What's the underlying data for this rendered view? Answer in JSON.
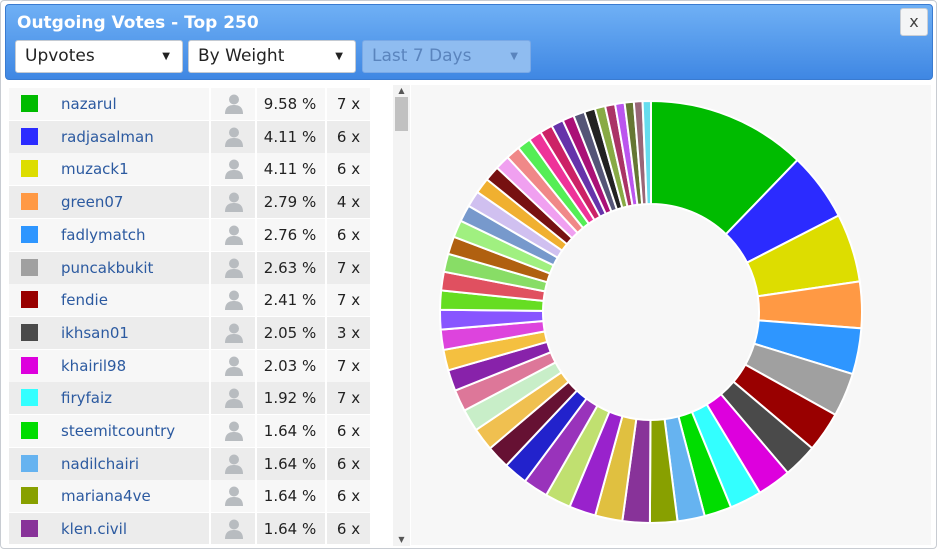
{
  "window": {
    "title": "Outgoing Votes - Top 250",
    "close_label": "x"
  },
  "filters": {
    "vote_type": "Upvotes",
    "sort": "By Weight",
    "period": "Last 7 Days"
  },
  "icons": {
    "dropdown": "chevron-down-icon",
    "user": "user-icon"
  },
  "votes": [
    {
      "name": "nazarul",
      "percent": "9.58 %",
      "count": "7 x",
      "color": "#00bb00"
    },
    {
      "name": "radjasalman",
      "percent": "4.11 %",
      "count": "6 x",
      "color": "#2b2bff"
    },
    {
      "name": "muzack1",
      "percent": "4.11 %",
      "count": "6 x",
      "color": "#dddd00"
    },
    {
      "name": "green07",
      "percent": "2.79 %",
      "count": "4 x",
      "color": "#ff9944"
    },
    {
      "name": "fadlymatch",
      "percent": "2.76 %",
      "count": "6 x",
      "color": "#2e96ff"
    },
    {
      "name": "puncakbukit",
      "percent": "2.63 %",
      "count": "7 x",
      "color": "#a0a0a0"
    },
    {
      "name": "fendie",
      "percent": "2.41 %",
      "count": "7 x",
      "color": "#990000"
    },
    {
      "name": "ikhsan01",
      "percent": "2.05 %",
      "count": "3 x",
      "color": "#4a4a4a"
    },
    {
      "name": "khairil98",
      "percent": "2.03 %",
      "count": "7 x",
      "color": "#dd00dd"
    },
    {
      "name": "firyfaiz",
      "percent": "1.92 %",
      "count": "7 x",
      "color": "#33ffff"
    },
    {
      "name": "steemitcountry",
      "percent": "1.64 %",
      "count": "6 x",
      "color": "#00dd00"
    },
    {
      "name": "nadilchairi",
      "percent": "1.64 %",
      "count": "6 x",
      "color": "#66b3f0"
    },
    {
      "name": "mariana4ve",
      "percent": "1.64 %",
      "count": "6 x",
      "color": "#88a000"
    },
    {
      "name": "klen.civil",
      "percent": "1.64 %",
      "count": "6 x",
      "color": "#883399"
    }
  ],
  "pie_colors_rest": [
    "#e0c040",
    "#9922cc",
    "#c0e070",
    "#9933bb",
    "#2222cc",
    "#661133",
    "#f0c050",
    "#c8eec8",
    "#dd7799",
    "#8822aa",
    "#f4c040",
    "#dd44dd",
    "#8855ff",
    "#66dd22",
    "#e05060",
    "#88dd66",
    "#b06010",
    "#a0f080",
    "#7799cc",
    "#d0c0f0",
    "#f0b030",
    "#771111",
    "#f0a0f0",
    "#f08888",
    "#55ee55",
    "#ee3399",
    "#cc2266",
    "#6633aa",
    "#aa1177",
    "#555577",
    "#222222",
    "#88aa44",
    "#aa3366",
    "#bb55ee",
    "#667733",
    "#996677",
    "#66ddee"
  ],
  "chart_data": {
    "type": "pie",
    "style": "donut",
    "series": [
      {
        "name": "nazarul",
        "value": 9.58
      },
      {
        "name": "radjasalman",
        "value": 4.11
      },
      {
        "name": "muzack1",
        "value": 4.11
      },
      {
        "name": "green07",
        "value": 2.79
      },
      {
        "name": "fadlymatch",
        "value": 2.76
      },
      {
        "name": "puncakbukit",
        "value": 2.63
      },
      {
        "name": "fendie",
        "value": 2.41
      },
      {
        "name": "ikhsan01",
        "value": 2.05
      },
      {
        "name": "khairil98",
        "value": 2.03
      },
      {
        "name": "firyfaiz",
        "value": 1.92
      },
      {
        "name": "steemitcountry",
        "value": 1.64
      },
      {
        "name": "nadilchairi",
        "value": 1.64
      },
      {
        "name": "mariana4ve",
        "value": 1.64
      },
      {
        "name": "klen.civil",
        "value": 1.64
      }
    ],
    "other_slices": [
      1.64,
      1.6,
      1.55,
      1.5,
      1.45,
      1.4,
      1.37,
      1.34,
      1.3,
      1.27,
      1.24,
      1.21,
      1.18,
      1.15,
      1.12,
      1.09,
      1.06,
      1.03,
      1.0,
      0.97,
      0.94,
      0.91,
      0.88,
      0.85,
      0.82,
      0.79,
      0.76,
      0.73,
      0.7,
      0.68,
      0.65,
      0.62,
      0.6,
      0.57,
      0.55,
      0.52,
      0.5
    ]
  }
}
